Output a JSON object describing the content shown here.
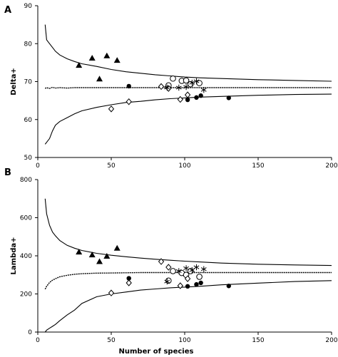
{
  "chart_data": [
    {
      "type": "scatter",
      "panel_label": "A",
      "title": "",
      "xlabel": "",
      "ylabel": "Delta+",
      "xlim": [
        0,
        200
      ],
      "ylim": [
        50,
        90
      ],
      "xticks": [
        0,
        50,
        100,
        150,
        200
      ],
      "yticks": [
        50,
        60,
        70,
        80,
        90
      ],
      "grid": false,
      "funnel": {
        "x": [
          5,
          6,
          8,
          10,
          12,
          15,
          20,
          25,
          30,
          40,
          50,
          60,
          70,
          80,
          90,
          100,
          110,
          125,
          150,
          175,
          200
        ],
        "upper": [
          85,
          81,
          80,
          79,
          78,
          77,
          76,
          75.3,
          74.7,
          74,
          73.2,
          72.6,
          72.2,
          71.8,
          71.5,
          71.2,
          71,
          70.8,
          70.5,
          70.3,
          70.1
        ],
        "mean": [
          68.2,
          68.4,
          68.2,
          68.5,
          68.3,
          68.4,
          68.3,
          68.4,
          68.4,
          68.4,
          68.4,
          68.4,
          68.4,
          68.4,
          68.4,
          68.4,
          68.4,
          68.4,
          68.4,
          68.4,
          68.4
        ],
        "lower": [
          53.5,
          54,
          55,
          57,
          58.5,
          59.5,
          60.5,
          61.5,
          62.3,
          63.2,
          63.9,
          64.5,
          64.8,
          65.2,
          65.5,
          65.7,
          65.9,
          66.1,
          66.4,
          66.6,
          66.7
        ]
      },
      "series": [
        {
          "marker": "triangle-filled",
          "points": [
            [
              28,
              74.3
            ],
            [
              37,
              76.2
            ],
            [
              42,
              70.7
            ],
            [
              47,
              76.8
            ],
            [
              54,
              75.6
            ]
          ]
        },
        {
          "marker": "circle-filled",
          "points": [
            [
              62,
              68.8
            ],
            [
              102,
              65.2
            ],
            [
              108,
              65.8
            ],
            [
              111,
              66.3
            ],
            [
              130,
              65.7
            ]
          ]
        },
        {
          "marker": "circle-open",
          "points": [
            [
              89,
              69
            ],
            [
              92,
              70.8
            ],
            [
              98,
              70.2
            ],
            [
              101,
              70.3
            ],
            [
              104,
              69.3
            ],
            [
              110,
              69.6
            ]
          ]
        },
        {
          "marker": "diamond-open",
          "points": [
            [
              50,
              62.8
            ],
            [
              62,
              64.7
            ],
            [
              84,
              68.7
            ],
            [
              89,
              68.2
            ],
            [
              97,
              65.3
            ],
            [
              102,
              66.5
            ]
          ]
        },
        {
          "marker": "asterisk",
          "points": [
            [
              88,
              68.4
            ],
            [
              96,
              68.4
            ],
            [
              101,
              68.6
            ],
            [
              105,
              69.7
            ],
            [
              108,
              70.1
            ],
            [
              113,
              67.8
            ]
          ]
        }
      ]
    },
    {
      "type": "scatter",
      "panel_label": "B",
      "title": "",
      "xlabel": "Number of species",
      "ylabel": "Lambda+",
      "xlim": [
        0,
        200
      ],
      "ylim": [
        0,
        800
      ],
      "xticks": [
        0,
        50,
        100,
        150,
        200
      ],
      "yticks": [
        0,
        200,
        400,
        600,
        800
      ],
      "grid": false,
      "funnel": {
        "x": [
          5,
          6,
          8,
          10,
          12,
          15,
          20,
          25,
          30,
          40,
          50,
          60,
          70,
          80,
          90,
          100,
          110,
          125,
          150,
          175,
          200
        ],
        "upper": [
          700,
          620,
          560,
          525,
          505,
          480,
          455,
          440,
          428,
          413,
          403,
          395,
          388,
          382,
          377,
          372,
          368,
          362,
          356,
          352,
          349
        ],
        "mean": [
          225,
          240,
          260,
          272,
          280,
          290,
          298,
          303,
          306,
          309,
          310,
          311,
          312,
          312,
          312,
          312,
          312,
          312,
          312,
          312,
          312
        ],
        "lower": [
          0,
          10,
          20,
          30,
          40,
          60,
          90,
          115,
          150,
          185,
          200,
          210,
          220,
          226,
          232,
          236,
          240,
          248,
          257,
          265,
          270
        ]
      },
      "series": [
        {
          "marker": "triangle-filled",
          "points": [
            [
              28,
              420
            ],
            [
              37,
              405
            ],
            [
              42,
              370
            ],
            [
              47,
              398
            ],
            [
              54,
              440
            ]
          ]
        },
        {
          "marker": "circle-filled",
          "points": [
            [
              62,
              282
            ],
            [
              102,
              240
            ],
            [
              108,
              250
            ],
            [
              111,
              258
            ],
            [
              130,
              242
            ]
          ]
        },
        {
          "marker": "circle-open",
          "points": [
            [
              89,
              270
            ],
            [
              92,
              320
            ],
            [
              98,
              310
            ],
            [
              101,
              300
            ],
            [
              104,
              320
            ],
            [
              110,
              290
            ]
          ]
        },
        {
          "marker": "diamond-open",
          "points": [
            [
              50,
              205
            ],
            [
              62,
              258
            ],
            [
              84,
              370
            ],
            [
              89,
              340
            ],
            [
              97,
              243
            ],
            [
              102,
              280
            ]
          ]
        },
        {
          "marker": "asterisk",
          "points": [
            [
              88,
              265
            ],
            [
              96,
              320
            ],
            [
              101,
              335
            ],
            [
              105,
              325
            ],
            [
              108,
              340
            ],
            [
              113,
              330
            ]
          ]
        }
      ]
    }
  ]
}
